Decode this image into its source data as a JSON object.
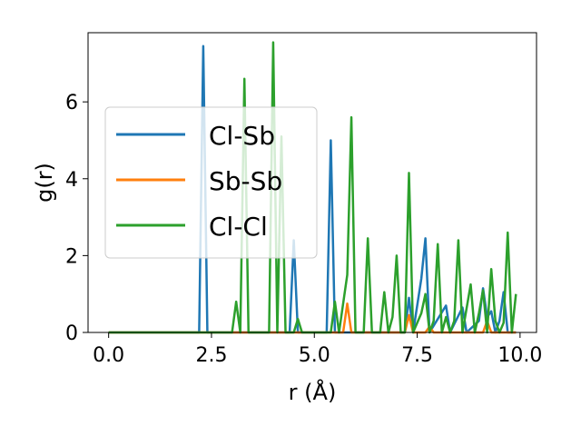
{
  "chart_data": {
    "type": "line",
    "title": "",
    "xlabel": "r (Å)",
    "ylabel": "g(r)",
    "xlim": [
      -0.5,
      10.4
    ],
    "ylim": [
      0,
      7.8
    ],
    "xticks": [
      0.0,
      2.5,
      5.0,
      7.5,
      10.0
    ],
    "xtick_labels": [
      "0.0",
      "2.5",
      "5.0",
      "7.5",
      "10.0"
    ],
    "yticks": [
      0,
      2,
      4,
      6
    ],
    "ytick_labels": [
      "0",
      "2",
      "4",
      "6"
    ],
    "grid": false,
    "legend_position": "center-left",
    "series": [
      {
        "name": "Cl-Sb",
        "color": "#1f77b4",
        "points": [
          [
            0,
            0
          ],
          [
            2.2,
            0
          ],
          [
            2.3,
            7.45
          ],
          [
            2.4,
            0
          ],
          [
            4.4,
            0
          ],
          [
            4.5,
            2.4
          ],
          [
            4.6,
            0
          ],
          [
            5.3,
            0
          ],
          [
            5.4,
            5.0
          ],
          [
            5.5,
            0
          ],
          [
            7.2,
            0
          ],
          [
            7.3,
            0.9
          ],
          [
            7.4,
            0
          ],
          [
            7.6,
            1.4
          ],
          [
            7.7,
            2.45
          ],
          [
            7.8,
            0
          ],
          [
            8.2,
            0.7
          ],
          [
            8.3,
            0
          ],
          [
            8.6,
            0.65
          ],
          [
            8.7,
            0
          ],
          [
            9.0,
            0.3
          ],
          [
            9.1,
            1.15
          ],
          [
            9.2,
            0.4
          ],
          [
            9.3,
            0.55
          ],
          [
            9.4,
            0
          ],
          [
            9.5,
            0.3
          ],
          [
            9.6,
            1.05
          ],
          [
            9.7,
            0
          ],
          [
            9.9,
            0
          ]
        ]
      },
      {
        "name": "Sb-Sb",
        "color": "#ff7f0e",
        "points": [
          [
            0,
            0
          ],
          [
            5.7,
            0
          ],
          [
            5.8,
            0.75
          ],
          [
            5.9,
            0
          ],
          [
            7.2,
            0
          ],
          [
            7.3,
            0.45
          ],
          [
            7.4,
            0
          ],
          [
            7.7,
            0
          ],
          [
            7.8,
            0.15
          ],
          [
            7.9,
            0
          ],
          [
            9.1,
            0
          ],
          [
            9.2,
            0.3
          ],
          [
            9.3,
            0
          ],
          [
            9.9,
            0
          ]
        ]
      },
      {
        "name": "Cl-Cl",
        "color": "#2ca02c",
        "points": [
          [
            0,
            0
          ],
          [
            3.0,
            0
          ],
          [
            3.1,
            0.8
          ],
          [
            3.2,
            0
          ],
          [
            3.3,
            6.6
          ],
          [
            3.4,
            0
          ],
          [
            3.9,
            0
          ],
          [
            4.0,
            7.55
          ],
          [
            4.1,
            0
          ],
          [
            4.2,
            5.1
          ],
          [
            4.3,
            0
          ],
          [
            4.5,
            0
          ],
          [
            4.6,
            0.35
          ],
          [
            4.7,
            0
          ],
          [
            5.4,
            0
          ],
          [
            5.5,
            0.8
          ],
          [
            5.6,
            0
          ],
          [
            5.8,
            1.5
          ],
          [
            5.9,
            5.6
          ],
          [
            6.0,
            0
          ],
          [
            6.2,
            0
          ],
          [
            6.3,
            2.45
          ],
          [
            6.4,
            0
          ],
          [
            6.6,
            0
          ],
          [
            6.7,
            1.05
          ],
          [
            6.8,
            0
          ],
          [
            6.9,
            0.4
          ],
          [
            7.0,
            2.0
          ],
          [
            7.1,
            0
          ],
          [
            7.2,
            0
          ],
          [
            7.3,
            4.15
          ],
          [
            7.4,
            0
          ],
          [
            7.6,
            0.5
          ],
          [
            7.7,
            1.0
          ],
          [
            7.8,
            0
          ],
          [
            7.9,
            0.3
          ],
          [
            8.0,
            2.3
          ],
          [
            8.1,
            0
          ],
          [
            8.2,
            0.4
          ],
          [
            8.3,
            0
          ],
          [
            8.4,
            0.3
          ],
          [
            8.5,
            2.4
          ],
          [
            8.6,
            0
          ],
          [
            8.8,
            1.25
          ],
          [
            8.9,
            0
          ],
          [
            9.0,
            0.5
          ],
          [
            9.1,
            1.1
          ],
          [
            9.2,
            0
          ],
          [
            9.3,
            1.65
          ],
          [
            9.4,
            0.3
          ],
          [
            9.5,
            0
          ],
          [
            9.6,
            0.25
          ],
          [
            9.7,
            2.6
          ],
          [
            9.8,
            0
          ],
          [
            9.9,
            1.0
          ]
        ]
      }
    ]
  }
}
